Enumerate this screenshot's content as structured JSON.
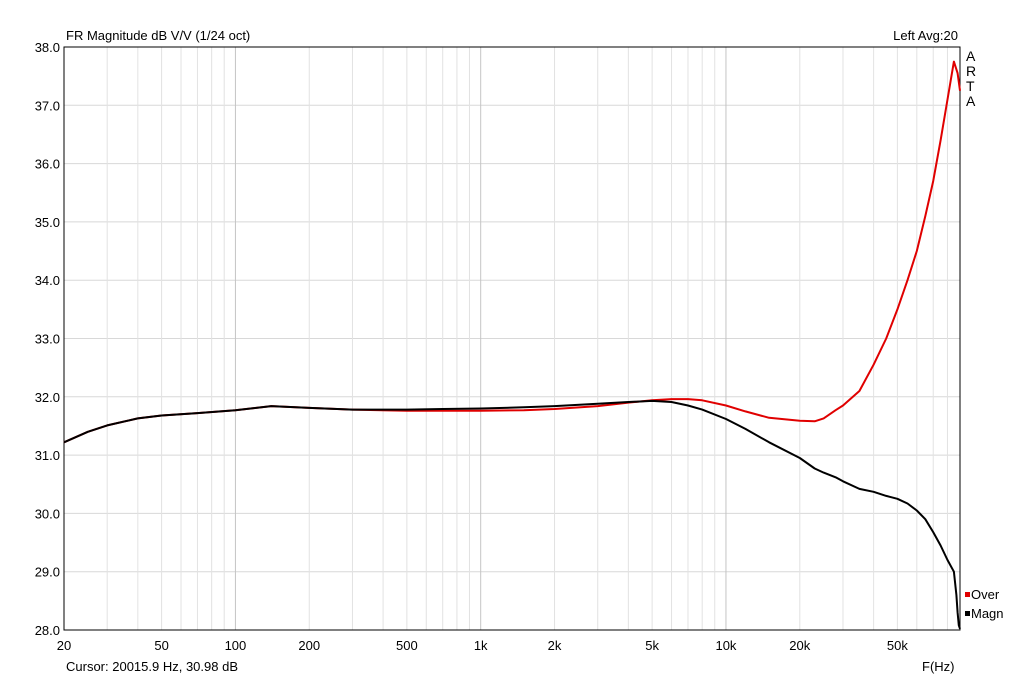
{
  "chart_data": {
    "type": "line",
    "title": "FR Magnitude dB V/V (1/24 oct)",
    "top_right": "Left  Avg:20",
    "brand": [
      "A",
      "R",
      "T",
      "A"
    ],
    "xlabel": "F(Hz)",
    "cursor_readout": "Cursor: 20015.9 Hz, 30.98 dB",
    "x_scale": "log",
    "xlim": [
      20,
      90000
    ],
    "ylim": [
      28.0,
      38.0
    ],
    "grid": true,
    "legend_placement": "right-bottom",
    "x_ticks": [
      {
        "value": 20,
        "label": "20"
      },
      {
        "value": 50,
        "label": "50"
      },
      {
        "value": 100,
        "label": "100"
      },
      {
        "value": 200,
        "label": "200"
      },
      {
        "value": 500,
        "label": "500"
      },
      {
        "value": 1000,
        "label": "1k"
      },
      {
        "value": 2000,
        "label": "2k"
      },
      {
        "value": 5000,
        "label": "5k"
      },
      {
        "value": 10000,
        "label": "10k"
      },
      {
        "value": 20000,
        "label": "20k"
      },
      {
        "value": 50000,
        "label": "50k"
      }
    ],
    "y_ticks": [
      "28.0",
      "29.0",
      "30.0",
      "31.0",
      "32.0",
      "33.0",
      "34.0",
      "35.0",
      "36.0",
      "37.0",
      "38.0"
    ],
    "series": [
      {
        "name": "Over",
        "color": "#e00000",
        "x": [
          20,
          25,
          30,
          40,
          50,
          70,
          100,
          140,
          200,
          300,
          500,
          700,
          1000,
          1500,
          2000,
          3000,
          4000,
          5000,
          6000,
          7000,
          8000,
          10000,
          12000,
          15000,
          20000,
          23000,
          25000,
          28000,
          30000,
          35000,
          40000,
          45000,
          50000,
          55000,
          60000,
          65000,
          70000,
          75000,
          80000,
          85000,
          88000,
          90000
        ],
        "values": [
          31.22,
          31.4,
          31.51,
          31.63,
          31.68,
          31.72,
          31.77,
          31.84,
          31.81,
          31.78,
          31.76,
          31.76,
          31.76,
          31.77,
          31.79,
          31.84,
          31.9,
          31.94,
          31.96,
          31.96,
          31.94,
          31.85,
          31.75,
          31.64,
          31.59,
          31.58,
          31.63,
          31.77,
          31.85,
          32.1,
          32.55,
          33.0,
          33.5,
          34.0,
          34.5,
          35.1,
          35.7,
          36.4,
          37.1,
          37.75,
          37.55,
          37.25
        ]
      },
      {
        "name": "Magn",
        "color": "#000000",
        "x": [
          20,
          25,
          30,
          40,
          50,
          70,
          100,
          140,
          200,
          300,
          500,
          700,
          1000,
          1500,
          2000,
          3000,
          4000,
          5000,
          6000,
          7000,
          8000,
          10000,
          12000,
          15000,
          20000,
          23000,
          25000,
          28000,
          30000,
          35000,
          40000,
          45000,
          50000,
          55000,
          60000,
          65000,
          70000,
          75000,
          80000,
          85000,
          87000,
          88000,
          89000,
          90000
        ],
        "values": [
          31.22,
          31.4,
          31.51,
          31.63,
          31.68,
          31.72,
          31.77,
          31.84,
          31.81,
          31.78,
          31.78,
          31.79,
          31.8,
          31.82,
          31.84,
          31.88,
          31.91,
          31.93,
          31.91,
          31.85,
          31.78,
          31.62,
          31.45,
          31.22,
          30.95,
          30.77,
          30.7,
          30.62,
          30.55,
          30.42,
          30.37,
          30.3,
          30.25,
          30.17,
          30.05,
          29.9,
          29.68,
          29.45,
          29.2,
          29.0,
          28.6,
          28.3,
          28.08,
          28.02
        ]
      }
    ]
  }
}
